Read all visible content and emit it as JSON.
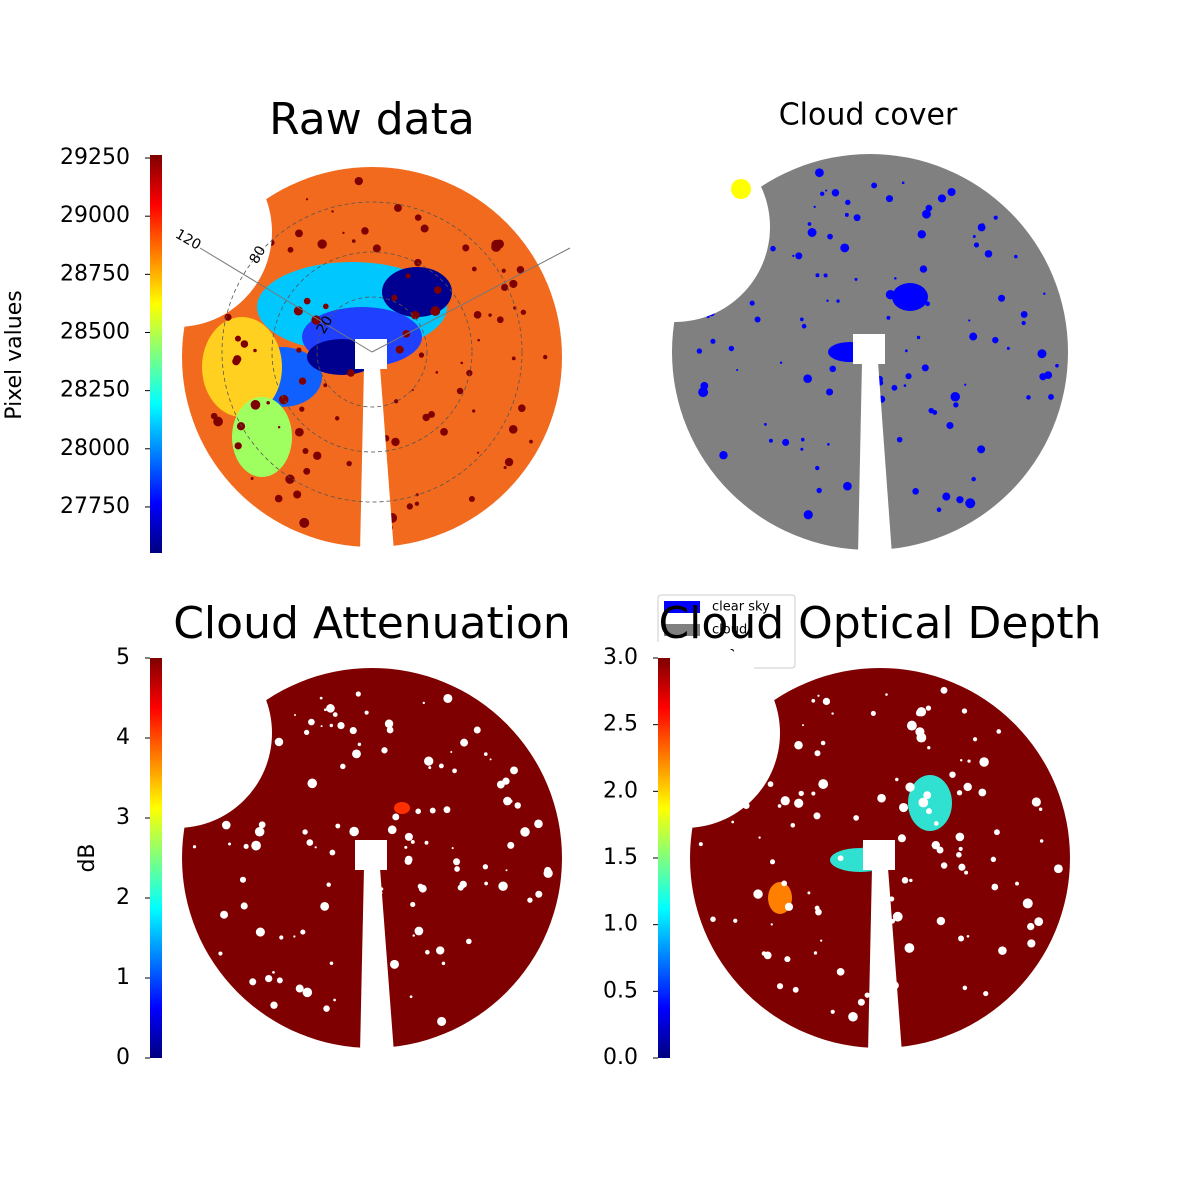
{
  "chart_data": [
    {
      "type": "image",
      "title": "Raw data",
      "colorbar_label": "Pixel values",
      "colormap": "jet",
      "ylim": [
        27552,
        29263
      ],
      "yticks": [
        27750,
        28000,
        28250,
        28500,
        28750,
        29000,
        29250
      ],
      "polar_labels": [
        "120",
        "80",
        "20"
      ]
    },
    {
      "type": "image",
      "title": "Cloud cover",
      "series": [
        {
          "name": "clear sky",
          "color": "#0000ff"
        },
        {
          "name": "cloud",
          "color": "#808080"
        },
        {
          "name": "sun",
          "color": "#ffff00"
        }
      ]
    },
    {
      "type": "image",
      "title": "Cloud Attenuation",
      "colorbar_label": "dB",
      "colormap": "jet",
      "ylim": [
        0,
        5
      ],
      "yticks": [
        0,
        1,
        2,
        3,
        4,
        5
      ]
    },
    {
      "type": "image",
      "title": "Cloud Optical Depth",
      "colormap": "jet",
      "ylim": [
        0,
        3
      ],
      "yticks": [
        {
          "value": 0,
          "label": "0.0"
        },
        0.5,
        {
          "value": 1,
          "label": "1.0"
        },
        1.5,
        {
          "value": 2,
          "label": "2.0"
        },
        2.5,
        {
          "value": 3,
          "label": "3.0"
        }
      ]
    }
  ]
}
